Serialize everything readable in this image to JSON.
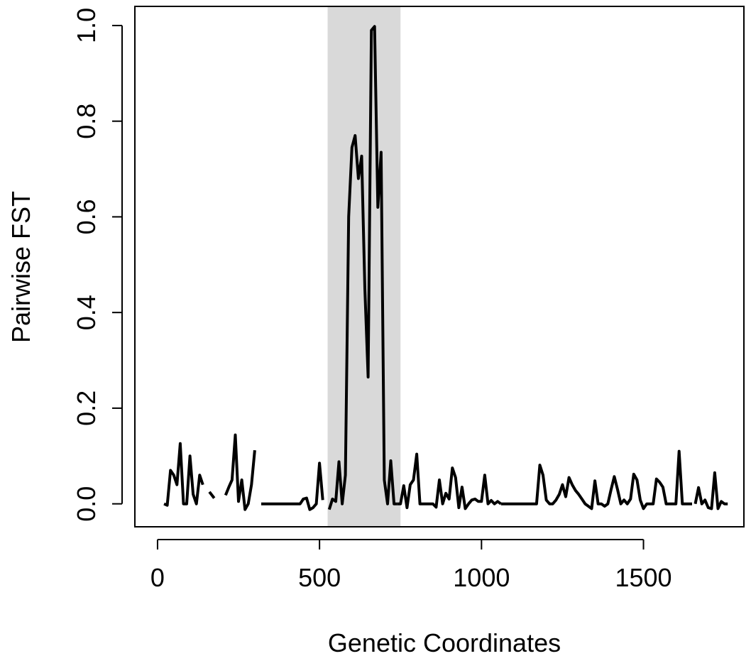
{
  "chart_data": {
    "type": "line",
    "title": "",
    "xlabel": "Genetic Coordinates",
    "ylabel": "Pairwise FST",
    "xlim": [
      -70,
      1810
    ],
    "ylim": [
      -0.048,
      1.04
    ],
    "x_ticks": [
      0,
      500,
      1000,
      1500
    ],
    "x_tick_labels": [
      "0",
      "500",
      "1000",
      "1500"
    ],
    "y_ticks": [
      0.0,
      0.2,
      0.4,
      0.6,
      0.8,
      1.0
    ],
    "y_tick_labels": [
      "0.0",
      "0.2",
      "0.4",
      "0.6",
      "0.8",
      "1.0"
    ],
    "highlight_region": {
      "x_start": 525,
      "x_end": 750,
      "color": "#d9d9d9"
    },
    "line_color": "#000000",
    "grid": false,
    "legend": "none",
    "segments": [
      {
        "x": [
          20,
          30,
          40,
          50,
          60,
          70,
          80,
          90,
          100,
          110,
          120,
          130,
          140
        ],
        "y": [
          0.0,
          -0.003,
          0.07,
          0.06,
          0.04,
          0.126,
          0.0,
          0.0,
          0.1,
          0.02,
          0.0,
          0.06,
          0.04
        ]
      },
      {
        "x": [
          160,
          175
        ],
        "y": [
          0.025,
          0.012
        ]
      },
      {
        "x": [
          210,
          220,
          230,
          240,
          250,
          260,
          270,
          280,
          290,
          300
        ],
        "y": [
          0.018,
          0.035,
          0.05,
          0.144,
          0.005,
          0.05,
          -0.012,
          0.0,
          0.04,
          0.112
        ]
      },
      {
        "x": [
          320,
          340,
          360,
          380,
          400,
          420,
          440,
          450,
          460,
          470,
          480,
          490,
          500,
          510
        ],
        "y": [
          0.0,
          0.0,
          0.0,
          0.0,
          0.0,
          0.0,
          0.0,
          0.01,
          0.012,
          -0.012,
          -0.008,
          0.0,
          0.085,
          0.008
        ]
      },
      {
        "x": [
          530,
          540,
          550,
          560,
          570,
          580,
          590,
          600,
          610,
          620,
          630,
          640,
          650,
          660,
          670,
          680,
          690,
          700,
          710,
          720,
          730,
          740
        ],
        "y": [
          -0.012,
          0.01,
          0.005,
          0.088,
          0.0,
          0.06,
          0.6,
          0.745,
          0.77,
          0.68,
          0.727,
          0.45,
          0.265,
          0.99,
          0.998,
          0.62,
          0.735,
          0.05,
          0.0,
          0.09,
          0.0,
          0.0
        ]
      },
      {
        "x": [
          740,
          750,
          760,
          770,
          780,
          790,
          800,
          810,
          820,
          830,
          840,
          850,
          860,
          870,
          880,
          890,
          900,
          910,
          920,
          930,
          940,
          950,
          960,
          970,
          980,
          990,
          1000,
          1010,
          1020,
          1030,
          1040,
          1050,
          1060
        ],
        "y": [
          0.0,
          0.0,
          0.038,
          -0.008,
          0.04,
          0.05,
          0.104,
          0.0,
          0.0,
          0.0,
          0.0,
          0.0,
          -0.007,
          0.05,
          0.0,
          0.022,
          0.01,
          0.075,
          0.055,
          -0.008,
          0.035,
          -0.01,
          0.0,
          0.008,
          0.01,
          0.005,
          0.005,
          0.06,
          0.0,
          0.007,
          0.0,
          0.005,
          0.0
        ]
      },
      {
        "x": [
          1060,
          1080,
          1100,
          1120,
          1140,
          1160,
          1170,
          1180,
          1190,
          1200,
          1210,
          1220,
          1230,
          1240,
          1250,
          1260,
          1270,
          1280,
          1290,
          1300,
          1310,
          1320,
          1330,
          1340,
          1350,
          1360,
          1370,
          1380,
          1390,
          1400,
          1410,
          1420,
          1430,
          1440,
          1450,
          1460,
          1470,
          1480,
          1490,
          1500,
          1510,
          1520,
          1530,
          1540,
          1550,
          1560,
          1570,
          1580,
          1590,
          1600,
          1610,
          1620,
          1630,
          1640,
          1650
        ],
        "y": [
          0.0,
          0.0,
          0.0,
          0.0,
          0.0,
          0.0,
          0.0,
          0.081,
          0.06,
          0.008,
          0.0,
          0.0,
          0.008,
          0.02,
          0.04,
          0.015,
          0.055,
          0.04,
          0.028,
          0.02,
          0.01,
          0.0,
          -0.005,
          -0.01,
          0.048,
          0.0,
          0.0,
          -0.005,
          0.0,
          0.03,
          0.057,
          0.03,
          0.0,
          0.008,
          0.0,
          0.01,
          0.062,
          0.05,
          0.008,
          -0.01,
          0.0,
          0.0,
          0.0,
          0.052,
          0.045,
          0.035,
          0.0,
          0.0,
          0.0,
          0.0,
          0.11,
          0.0,
          0.0,
          0.0,
          0.0
        ]
      },
      {
        "x": [
          1660,
          1670,
          1680,
          1690,
          1700,
          1710,
          1720,
          1730,
          1740,
          1750,
          1760
        ],
        "y": [
          0.0,
          0.034,
          0.0,
          0.008,
          -0.008,
          -0.01,
          0.065,
          -0.01,
          0.005,
          0.0,
          0.0
        ]
      }
    ]
  }
}
